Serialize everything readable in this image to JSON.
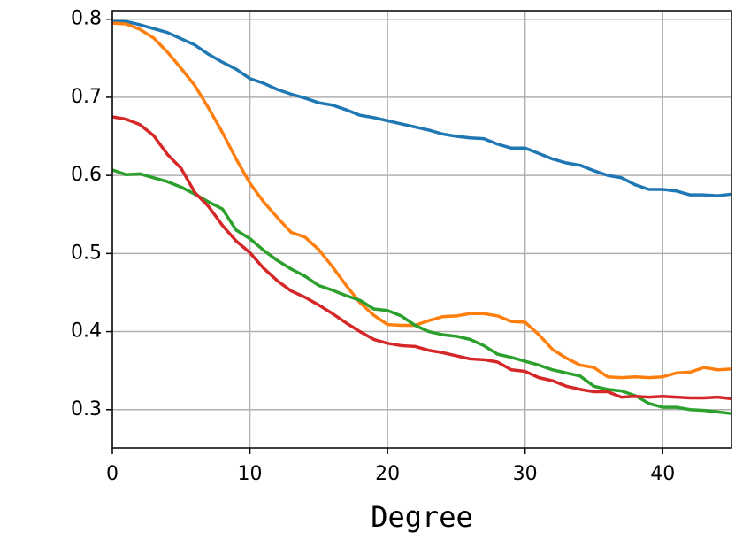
{
  "chart_data": {
    "type": "line",
    "xlabel": "Degree",
    "x": [
      0,
      1,
      2,
      3,
      4,
      5,
      6,
      7,
      8,
      9,
      10,
      11,
      12,
      13,
      14,
      15,
      16,
      17,
      18,
      19,
      20,
      21,
      22,
      23,
      24,
      25,
      26,
      27,
      28,
      29,
      30,
      31,
      32,
      33,
      34,
      35,
      36,
      37,
      38,
      39,
      40,
      41,
      42,
      43,
      44,
      45
    ],
    "series": [
      {
        "color": "#1f77b4",
        "values": [
          0.797,
          0.797,
          0.793,
          0.788,
          0.783,
          0.775,
          0.767,
          0.755,
          0.745,
          0.736,
          0.724,
          0.718,
          0.71,
          0.704,
          0.699,
          0.693,
          0.69,
          0.684,
          0.677,
          0.674,
          0.67,
          0.666,
          0.662,
          0.658,
          0.653,
          0.65,
          0.648,
          0.647,
          0.64,
          0.635,
          0.635,
          0.628,
          0.621,
          0.616,
          0.613,
          0.606,
          0.6,
          0.597,
          0.588,
          0.582,
          0.582,
          0.58,
          0.575,
          0.575,
          0.574,
          0.576
        ]
      },
      {
        "color": "#ff7f0e",
        "values": [
          0.795,
          0.794,
          0.787,
          0.776,
          0.758,
          0.737,
          0.715,
          0.686,
          0.655,
          0.621,
          0.59,
          0.566,
          0.546,
          0.527,
          0.521,
          0.505,
          0.483,
          0.459,
          0.437,
          0.421,
          0.409,
          0.408,
          0.408,
          0.414,
          0.419,
          0.42,
          0.423,
          0.423,
          0.42,
          0.413,
          0.412,
          0.396,
          0.377,
          0.366,
          0.357,
          0.354,
          0.342,
          0.341,
          0.342,
          0.341,
          0.342,
          0.347,
          0.348,
          0.354,
          0.351,
          0.352
        ]
      },
      {
        "color": "#2ca02c",
        "values": [
          0.607,
          0.601,
          0.602,
          0.597,
          0.592,
          0.585,
          0.576,
          0.566,
          0.557,
          0.53,
          0.519,
          0.504,
          0.491,
          0.48,
          0.471,
          0.459,
          0.453,
          0.446,
          0.44,
          0.429,
          0.427,
          0.42,
          0.408,
          0.4,
          0.396,
          0.394,
          0.39,
          0.382,
          0.371,
          0.367,
          0.362,
          0.357,
          0.351,
          0.347,
          0.343,
          0.33,
          0.326,
          0.324,
          0.318,
          0.308,
          0.303,
          0.303,
          0.3,
          0.299,
          0.297,
          0.295
        ]
      },
      {
        "color": "#d62728",
        "values": [
          0.675,
          0.672,
          0.665,
          0.651,
          0.627,
          0.609,
          0.578,
          0.56,
          0.536,
          0.516,
          0.501,
          0.481,
          0.465,
          0.452,
          0.444,
          0.434,
          0.423,
          0.411,
          0.4,
          0.39,
          0.385,
          0.382,
          0.381,
          0.376,
          0.373,
          0.369,
          0.365,
          0.364,
          0.361,
          0.351,
          0.349,
          0.341,
          0.337,
          0.33,
          0.326,
          0.323,
          0.323,
          0.316,
          0.317,
          0.316,
          0.317,
          0.316,
          0.315,
          0.315,
          0.316,
          0.314
        ]
      }
    ],
    "xlim": [
      0,
      45
    ],
    "xticks": [
      0,
      10,
      20,
      30,
      40
    ],
    "ylim": [
      0.251,
      0.811
    ],
    "yticks": [
      0.3,
      0.4,
      0.5,
      0.6,
      0.7,
      0.8
    ],
    "grid": true
  }
}
